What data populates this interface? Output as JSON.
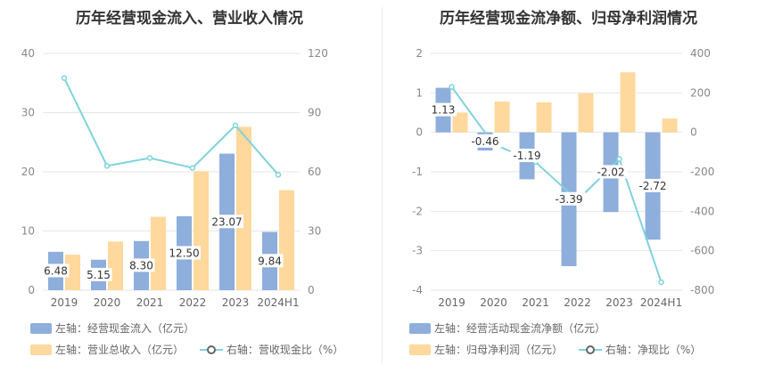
{
  "colors": {
    "bar1": "#8eaedc",
    "bar2": "#fed89c",
    "line": "#7fd3dc"
  },
  "chart_data": [
    {
      "type": "bar",
      "title": "历年经营现金流入、营业收入情况",
      "categories": [
        "2019",
        "2020",
        "2021",
        "2022",
        "2023",
        "2024H1"
      ],
      "left_axis": {
        "ylim": [
          0,
          40
        ],
        "ticks": [
          "0",
          "10",
          "20",
          "30",
          "40"
        ]
      },
      "right_axis": {
        "ylim": [
          0,
          120
        ],
        "ticks": [
          "0",
          "30",
          "60",
          "90",
          "120"
        ]
      },
      "series": [
        {
          "name": "左轴：经营现金流入（亿元）",
          "kind": "bar",
          "axis": "left",
          "values": [
            6.48,
            5.15,
            8.3,
            12.5,
            23.07,
            9.84
          ],
          "labels": [
            "6.48",
            "5.15",
            "8.30",
            "12.50",
            "23.07",
            "9.84"
          ]
        },
        {
          "name": "左轴：营业总收入（亿元）",
          "kind": "bar",
          "axis": "left",
          "values": [
            6.0,
            8.2,
            12.4,
            20.1,
            27.6,
            16.9
          ]
        },
        {
          "name": "右轴：营收现金比（%）",
          "kind": "line",
          "axis": "right",
          "values": [
            107.5,
            63,
            67,
            62,
            83.5,
            58.5
          ]
        }
      ]
    },
    {
      "type": "bar",
      "title": "历年经营现金流净额、归母净利润情况",
      "categories": [
        "2019",
        "2020",
        "2021",
        "2022",
        "2023",
        "2024H1"
      ],
      "left_axis": {
        "ylim": [
          -4,
          2
        ],
        "ticks": [
          "-4",
          "-3",
          "-2",
          "-1",
          "0",
          "1",
          "2"
        ]
      },
      "right_axis": {
        "ylim": [
          -800,
          400
        ],
        "ticks": [
          "-800",
          "-600",
          "-400",
          "-200",
          "0",
          "200",
          "400"
        ]
      },
      "series": [
        {
          "name": "左轴：经营活动现金流净额（亿元）",
          "kind": "bar",
          "axis": "left",
          "values": [
            1.13,
            -0.46,
            -1.19,
            -3.39,
            -2.02,
            -2.72
          ],
          "labels": [
            "1.13",
            "-0.46",
            "-1.19",
            "-3.39",
            "-2.02",
            "-2.72"
          ]
        },
        {
          "name": "左轴：归母净利润（亿元）",
          "kind": "bar",
          "axis": "left",
          "values": [
            0.5,
            0.78,
            0.76,
            0.99,
            1.52,
            0.35
          ]
        },
        {
          "name": "右轴：净现比（%）",
          "kind": "line",
          "axis": "right",
          "values": [
            230,
            -60,
            -150,
            -345,
            -135,
            -760
          ]
        }
      ]
    }
  ]
}
